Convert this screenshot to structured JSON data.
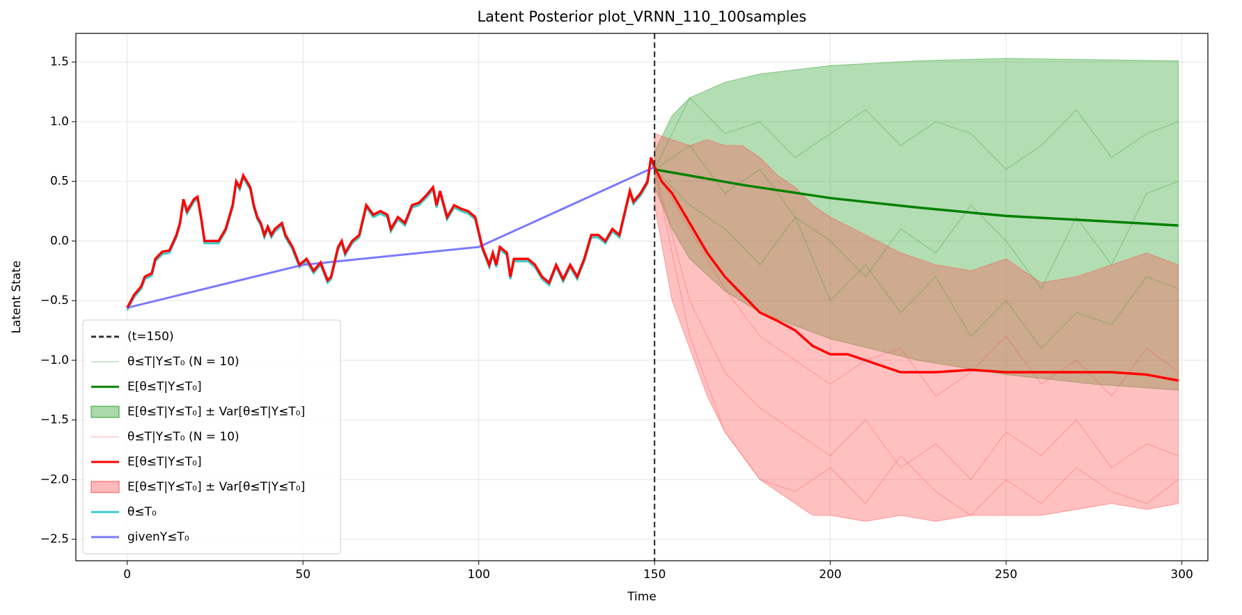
{
  "chart_data": {
    "type": "line",
    "title": "Latent Posterior plot_VRNN_110_100samples",
    "xlabel": "Time",
    "ylabel": "Latent State",
    "xlim": [
      -14.6,
      307.4
    ],
    "ylim": [
      -2.68,
      1.74
    ],
    "xticks": [
      0,
      50,
      100,
      150,
      200,
      250,
      300
    ],
    "yticks": [
      {
        "value": -2.5,
        "label": "−2.5"
      },
      {
        "value": -2,
        "label": "−2.0"
      },
      {
        "value": -1.5,
        "label": "−1.5"
      },
      {
        "value": -1,
        "label": "−1.0"
      },
      {
        "value": -0.5,
        "label": "−0.5"
      },
      {
        "value": 0,
        "label": "0.0"
      },
      0.5,
      {
        "value": 1,
        "label": "1.0"
      },
      1.5
    ],
    "grid": true,
    "legend": "lower left",
    "vline": {
      "name": "(t=150)",
      "x": 150,
      "color": "#333333"
    },
    "series": [
      {
        "name": "θ≤T|Y≤T₀ (N = 10)",
        "style": "samples",
        "color": "#2ca02c",
        "x": [
          150,
          160,
          170,
          180,
          190,
          200,
          210,
          220,
          230,
          240,
          250,
          260,
          270,
          280,
          290,
          299
        ],
        "values": [
          [
            0.6,
            1.2,
            0.9,
            1.0,
            0.7,
            0.9,
            1.1,
            0.8,
            1.0,
            0.9,
            0.6,
            0.8,
            1.1,
            0.7,
            0.9,
            1.0
          ],
          [
            0.6,
            0.3,
            0.1,
            -0.2,
            0.2,
            0.0,
            -0.3,
            0.1,
            -0.1,
            0.3,
            0.0,
            -0.4,
            0.2,
            -0.2,
            0.4,
            0.5
          ],
          [
            0.6,
            0.8,
            0.4,
            0.6,
            0.2,
            -0.5,
            -0.2,
            -0.6,
            -0.3,
            -0.8,
            -0.5,
            -0.9,
            -0.6,
            -0.7,
            -0.3,
            -0.4
          ]
        ]
      },
      {
        "name": "E[θ≤T|Y≤T₀]",
        "style": "mean",
        "color": "#008000",
        "x": [
          150,
          175,
          200,
          225,
          250,
          275,
          299
        ],
        "values": [
          0.6,
          0.47,
          0.36,
          0.28,
          0.21,
          0.17,
          0.13
        ]
      },
      {
        "name": "E[θ≤T|Y≤T₀] ± Var[θ≤T|Y≤T₀]",
        "style": "band",
        "color": "#2ca02c",
        "x": [
          150,
          155,
          160,
          170,
          180,
          200,
          225,
          250,
          275,
          299
        ],
        "upper": [
          0.75,
          1.05,
          1.2,
          1.33,
          1.4,
          1.47,
          1.51,
          1.53,
          1.52,
          1.51
        ],
        "lower": [
          0.45,
          0.1,
          -0.15,
          -0.42,
          -0.6,
          -0.82,
          -1.0,
          -1.12,
          -1.2,
          -1.25
        ]
      },
      {
        "name": "θ≤T|Y≤T₀ (N = 10)",
        "style": "samples",
        "color": "#ff5050",
        "x": [
          150,
          160,
          170,
          180,
          190,
          200,
          210,
          220,
          230,
          240,
          250,
          260,
          270,
          280,
          290,
          299
        ],
        "values": [
          [
            0.6,
            -0.5,
            -1.1,
            -1.4,
            -1.6,
            -1.8,
            -1.5,
            -1.9,
            -1.7,
            -2.0,
            -1.6,
            -1.8,
            -1.5,
            -1.9,
            -1.7,
            -1.8
          ],
          [
            0.6,
            0.1,
            -0.4,
            -0.8,
            -1.0,
            -1.2,
            -1.0,
            -0.9,
            -1.3,
            -1.1,
            -0.8,
            -1.2,
            -1.0,
            -1.3,
            -0.9,
            -1.1
          ],
          [
            0.6,
            -0.8,
            -1.6,
            -2.0,
            -2.1,
            -1.9,
            -2.2,
            -1.8,
            -2.1,
            -2.3,
            -2.0,
            -2.2,
            -1.9,
            -2.1,
            -2.2,
            -2.0
          ]
        ]
      },
      {
        "name": "E[θ≤T|Y≤T₀]",
        "style": "mean",
        "color": "#ff0000",
        "x": [
          0,
          2,
          4,
          5,
          7,
          8,
          10,
          12,
          14,
          15,
          16,
          17,
          19,
          20,
          21,
          22,
          24,
          26,
          28,
          30,
          31,
          32,
          33,
          35,
          36,
          37,
          38,
          39,
          40,
          41,
          42,
          44,
          45,
          47,
          49,
          51,
          53,
          55,
          57,
          58,
          60,
          61,
          62,
          64,
          66,
          68,
          70,
          72,
          74,
          75,
          77,
          79,
          81,
          83,
          85,
          87,
          88,
          89,
          91,
          93,
          95,
          97,
          99,
          101,
          103,
          104,
          105,
          106,
          108,
          109,
          110,
          112,
          114,
          116,
          118,
          120,
          122,
          124,
          126,
          128,
          130,
          132,
          134,
          136,
          138,
          140,
          142,
          143,
          144,
          146,
          148,
          149,
          150,
          152,
          155,
          160,
          165,
          170,
          175,
          180,
          185,
          190,
          195,
          200,
          205,
          210,
          215,
          220,
          230,
          240,
          250,
          260,
          270,
          280,
          290,
          299
        ],
        "values": [
          -0.56,
          -0.45,
          -0.38,
          -0.3,
          -0.27,
          -0.15,
          -0.09,
          -0.08,
          0.05,
          0.15,
          0.35,
          0.25,
          0.35,
          0.37,
          0.2,
          0.0,
          0.0,
          0.0,
          0.1,
          0.3,
          0.5,
          0.45,
          0.55,
          0.45,
          0.3,
          0.2,
          0.15,
          0.05,
          0.12,
          0.05,
          0.1,
          0.15,
          0.05,
          -0.05,
          -0.2,
          -0.15,
          -0.25,
          -0.18,
          -0.33,
          -0.3,
          -0.05,
          0.0,
          -0.1,
          0.0,
          0.05,
          0.3,
          0.22,
          0.25,
          0.22,
          0.1,
          0.2,
          0.15,
          0.3,
          0.32,
          0.38,
          0.45,
          0.3,
          0.42,
          0.2,
          0.3,
          0.27,
          0.25,
          0.2,
          -0.05,
          -0.2,
          -0.1,
          -0.2,
          -0.05,
          -0.1,
          -0.3,
          -0.15,
          -0.15,
          -0.15,
          -0.2,
          -0.3,
          -0.35,
          -0.2,
          -0.32,
          -0.2,
          -0.3,
          -0.15,
          0.05,
          0.05,
          0.0,
          0.1,
          0.05,
          0.3,
          0.42,
          0.33,
          0.4,
          0.5,
          0.7,
          0.62,
          0.5,
          0.4,
          0.15,
          -0.1,
          -0.3,
          -0.45,
          -0.6,
          -0.67,
          -0.75,
          -0.88,
          -0.95,
          -0.95,
          -1.0,
          -1.05,
          -1.1,
          -1.1,
          -1.08,
          -1.1,
          -1.1,
          -1.1,
          -1.1,
          -1.12,
          -1.17
        ]
      },
      {
        "name": "E[θ≤T|Y≤T₀] ± Var[θ≤T|Y≤T₀]",
        "style": "band",
        "color": "#ff5050",
        "x": [
          150,
          155,
          160,
          165,
          170,
          175,
          180,
          185,
          190,
          195,
          200,
          210,
          220,
          230,
          240,
          250,
          260,
          270,
          280,
          290,
          299
        ],
        "upper": [
          0.9,
          0.85,
          0.8,
          0.85,
          0.8,
          0.8,
          0.7,
          0.55,
          0.45,
          0.3,
          0.2,
          0.05,
          -0.1,
          -0.2,
          -0.25,
          -0.15,
          -0.35,
          -0.3,
          -0.2,
          -0.1,
          -0.2
        ],
        "lower": [
          0.3,
          -0.5,
          -0.9,
          -1.3,
          -1.6,
          -1.8,
          -2.0,
          -2.1,
          -2.2,
          -2.3,
          -2.3,
          -2.35,
          -2.3,
          -2.35,
          -2.3,
          -2.3,
          -2.3,
          -2.25,
          -2.2,
          -2.25,
          -2.2
        ]
      },
      {
        "name": "θ≤T₀",
        "style": "truth",
        "color": "#3ecaca",
        "x": [
          0,
          2,
          4,
          5,
          7,
          8,
          10,
          12,
          14,
          15,
          16,
          17,
          19,
          20,
          21,
          22,
          24,
          26,
          28,
          30,
          31,
          32,
          33,
          35,
          36,
          37,
          38,
          39,
          40,
          41,
          42,
          44,
          45,
          47,
          49,
          51,
          53,
          55,
          57,
          58,
          60,
          61,
          62,
          64,
          66,
          68,
          70,
          72,
          74,
          75,
          77,
          79,
          81,
          83,
          85,
          87,
          88,
          89,
          91,
          93,
          95,
          97,
          99,
          101,
          103,
          104,
          105,
          106,
          108,
          109,
          110,
          112,
          114,
          116,
          118,
          120,
          122,
          124,
          126,
          128,
          130,
          132,
          134,
          136,
          138,
          140,
          142,
          143,
          144,
          146,
          148,
          149,
          150
        ],
        "values": [
          -0.58,
          -0.47,
          -0.4,
          -0.32,
          -0.29,
          -0.17,
          -0.11,
          -0.1,
          0.03,
          0.13,
          0.33,
          0.23,
          0.33,
          0.35,
          0.18,
          -0.02,
          -0.02,
          -0.02,
          0.08,
          0.28,
          0.48,
          0.43,
          0.53,
          0.43,
          0.28,
          0.18,
          0.13,
          0.03,
          0.1,
          0.03,
          0.08,
          0.13,
          0.03,
          -0.07,
          -0.22,
          -0.17,
          -0.27,
          -0.2,
          -0.35,
          -0.32,
          -0.07,
          -0.02,
          -0.12,
          -0.02,
          0.03,
          0.28,
          0.2,
          0.23,
          0.2,
          0.08,
          0.18,
          0.13,
          0.28,
          0.3,
          0.36,
          0.43,
          0.28,
          0.4,
          0.18,
          0.28,
          0.25,
          0.23,
          0.18,
          -0.07,
          -0.22,
          -0.12,
          -0.22,
          -0.07,
          -0.12,
          -0.32,
          -0.17,
          -0.17,
          -0.17,
          -0.22,
          -0.32,
          -0.37,
          -0.22,
          -0.34,
          -0.22,
          -0.32,
          -0.17,
          0.03,
          0.03,
          -0.02,
          0.08,
          0.03,
          0.28,
          0.4,
          0.31,
          0.38,
          0.48,
          0.68,
          0.6
        ]
      },
      {
        "name": "givenY≤T₀",
        "style": "truth",
        "color": "#7a7aff",
        "x": [
          0,
          50,
          100,
          150
        ],
        "values": [
          -0.56,
          -0.2,
          -0.05,
          0.62
        ]
      }
    ]
  }
}
